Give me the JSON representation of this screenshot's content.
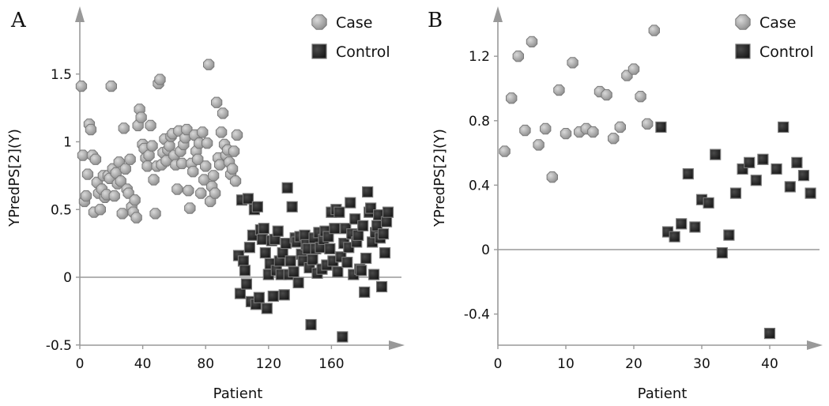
{
  "chart_data": [
    {
      "panel_label": "A",
      "type": "scatter",
      "xlabel": "Patient",
      "ylabel": "YPredPS[2](Y)",
      "xlim": [
        0,
        196
      ],
      "ylim": [
        -0.5,
        1.8
      ],
      "x_ticks": [
        0,
        40,
        80,
        120,
        160
      ],
      "y_ticks": [
        -0.5,
        0,
        0.5,
        1,
        1.5
      ],
      "y_tick_labels": [
        "-0.5",
        "0",
        "0.5",
        "1",
        "1.5"
      ],
      "zero_line": true,
      "legend_position": "top-right",
      "colors": {
        "case": "#a6a6a6",
        "control": "#333333",
        "axis": "#999999"
      },
      "series": [
        {
          "name": "Case",
          "marker": "octagon",
          "x": [
            1,
            2,
            3,
            4,
            5,
            6,
            7,
            8,
            9,
            10,
            11,
            12,
            13,
            14,
            15,
            16,
            17,
            18,
            19,
            20,
            21,
            22,
            23,
            24,
            25,
            26,
            27,
            28,
            29,
            30,
            31,
            32,
            33,
            34,
            35,
            36,
            37,
            38,
            39,
            40,
            41,
            42,
            43,
            44,
            45,
            46,
            47,
            48,
            49,
            50,
            51,
            52,
            53,
            54,
            55,
            56,
            57,
            58,
            59,
            60,
            61,
            62,
            63,
            64,
            65,
            66,
            67,
            68,
            69,
            70,
            71,
            72,
            73,
            74,
            75,
            76,
            77,
            78,
            79,
            80,
            81,
            82,
            83,
            84,
            85,
            86,
            87,
            88,
            89,
            90,
            91,
            92,
            93,
            94,
            95,
            96,
            97,
            98,
            99,
            100
          ],
          "y": [
            1.41,
            0.9,
            0.56,
            0.6,
            0.76,
            1.13,
            1.09,
            0.9,
            0.48,
            0.87,
            0.7,
            0.62,
            0.5,
            0.65,
            0.75,
            0.59,
            0.61,
            0.75,
            0.73,
            1.41,
            0.8,
            0.6,
            0.77,
            0.69,
            0.85,
            0.71,
            0.47,
            1.1,
            0.8,
            0.65,
            0.62,
            0.87,
            0.52,
            0.48,
            0.57,
            0.44,
            1.12,
            1.24,
            1.18,
            0.98,
            0.95,
            0.88,
            0.82,
            0.9,
            1.12,
            0.97,
            0.72,
            0.47,
            0.82,
            1.43,
            1.46,
            0.83,
            0.92,
            1.02,
            0.86,
            0.94,
            0.97,
            1.04,
            1.06,
            0.9,
            0.83,
            0.65,
            1.08,
            0.93,
            0.84,
            0.98,
            1.03,
            1.09,
            0.64,
            0.51,
            0.84,
            0.78,
            1.05,
            0.93,
            0.87,
            0.99,
            0.62,
            1.07,
            0.72,
            0.82,
            0.99,
            1.57,
            0.56,
            0.67,
            0.75,
            0.62,
            1.29,
            0.88,
            0.83,
            1.07,
            1.21,
            0.98,
            0.9,
            0.94,
            0.85,
            0.76,
            0.8,
            0.93,
            0.71,
            1.05
          ]
        },
        {
          "name": "Control",
          "marker": "square",
          "x": [
            101,
            102,
            103,
            104,
            105,
            106,
            107,
            108,
            109,
            110,
            111,
            112,
            113,
            114,
            115,
            116,
            117,
            118,
            119,
            120,
            121,
            122,
            123,
            124,
            125,
            126,
            127,
            128,
            129,
            130,
            131,
            132,
            133,
            134,
            135,
            136,
            137,
            138,
            139,
            140,
            141,
            142,
            143,
            144,
            145,
            146,
            147,
            148,
            149,
            150,
            151,
            152,
            153,
            154,
            155,
            156,
            157,
            158,
            159,
            160,
            161,
            162,
            163,
            164,
            165,
            166,
            167,
            168,
            169,
            170,
            171,
            172,
            173,
            174,
            175,
            176,
            177,
            178,
            179,
            180,
            181,
            182,
            183,
            184,
            185,
            186,
            187,
            188,
            189,
            190,
            191,
            192,
            193,
            194,
            195,
            196
          ],
          "y": [
            0.16,
            -0.12,
            0.57,
            0.12,
            0.05,
            -0.05,
            0.58,
            0.22,
            -0.18,
            0.31,
            0.5,
            -0.2,
            0.52,
            -0.15,
            0.35,
            0.28,
            0.36,
            0.18,
            -0.23,
            0.02,
            0.1,
            0.27,
            -0.14,
            0.28,
            0.05,
            0.34,
            0.12,
            0.02,
            0.18,
            -0.13,
            0.25,
            0.66,
            0.02,
            0.12,
            0.52,
            0.04,
            0.29,
            0.26,
            -0.04,
            0.3,
            0.17,
            0.12,
            0.31,
            0.24,
            0.21,
            0.07,
            -0.35,
            0.13,
            0.29,
            0.21,
            0.03,
            0.33,
            0.22,
            0.06,
            0.28,
            0.34,
            0.09,
            0.3,
            0.21,
            0.48,
            0.12,
            0.36,
            0.5,
            0.04,
            0.48,
            0.15,
            -0.44,
            0.25,
            0.36,
            0.11,
            0.22,
            0.55,
            0.32,
            0.02,
            0.43,
            0.26,
            0.31,
            0.06,
            0.05,
            0.38,
            -0.11,
            0.14,
            0.63,
            0.48,
            0.51,
            0.26,
            0.02,
            0.33,
            0.38,
            0.46,
            0.29,
            -0.07,
            0.32,
            0.18,
            0.41,
            0.48
          ]
        }
      ]
    },
    {
      "panel_label": "B",
      "type": "scatter",
      "xlabel": "Patient",
      "ylabel": "YPredPS[2](Y)",
      "xlim": [
        0,
        47
      ],
      "ylim": [
        -0.6,
        1.45
      ],
      "x_ticks": [
        0,
        10,
        20,
        30,
        40
      ],
      "y_ticks": [
        -0.4,
        0,
        0.4,
        0.8,
        1.2
      ],
      "y_tick_labels": [
        "-0.4",
        "0",
        "0.4",
        "0.8",
        "1.2"
      ],
      "zero_line": true,
      "legend_position": "top-right",
      "colors": {
        "case": "#a6a6a6",
        "control": "#333333",
        "axis": "#999999"
      },
      "series": [
        {
          "name": "Case",
          "marker": "octagon",
          "x": [
            1,
            2,
            3,
            4,
            5,
            6,
            7,
            8,
            9,
            10,
            11,
            12,
            13,
            14,
            15,
            16,
            17,
            18,
            19,
            20,
            21,
            22,
            23
          ],
          "y": [
            0.61,
            0.94,
            1.2,
            0.74,
            1.29,
            0.65,
            0.75,
            0.45,
            0.99,
            0.72,
            1.16,
            0.73,
            0.75,
            0.73,
            0.98,
            0.96,
            0.69,
            0.76,
            1.08,
            1.12,
            0.95,
            0.78,
            1.36
          ]
        },
        {
          "name": "Control",
          "marker": "square",
          "x": [
            24,
            25,
            26,
            27,
            28,
            29,
            30,
            31,
            32,
            33,
            34,
            35,
            36,
            37,
            38,
            39,
            40,
            41,
            42,
            43,
            44,
            45,
            46
          ],
          "y": [
            0.76,
            0.11,
            0.08,
            0.16,
            0.47,
            0.14,
            0.31,
            0.29,
            0.59,
            -0.02,
            0.09,
            0.35,
            0.5,
            0.54,
            0.43,
            0.56,
            -0.52,
            0.5,
            0.76,
            0.39,
            0.54,
            0.46,
            0.35
          ]
        }
      ]
    }
  ]
}
